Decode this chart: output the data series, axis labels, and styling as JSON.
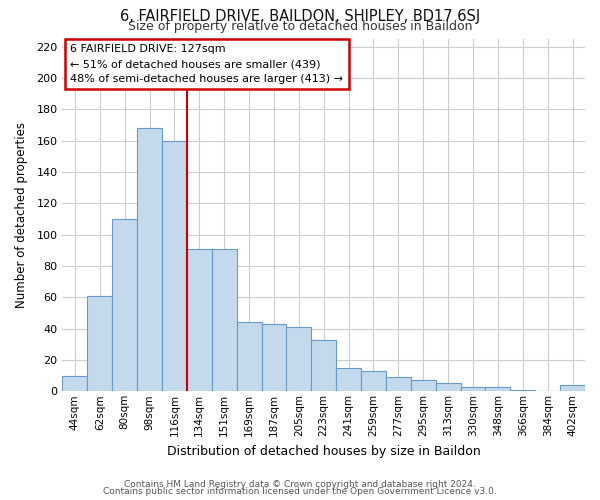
{
  "title1": "6, FAIRFIELD DRIVE, BAILDON, SHIPLEY, BD17 6SJ",
  "title2": "Size of property relative to detached houses in Baildon",
  "xlabel": "Distribution of detached houses by size in Baildon",
  "ylabel": "Number of detached properties",
  "footnote1": "Contains HM Land Registry data © Crown copyright and database right 2024.",
  "footnote2": "Contains public sector information licensed under the Open Government Licence v3.0.",
  "annotation_line1": "6 FAIRFIELD DRIVE: 127sqm",
  "annotation_line2": "← 51% of detached houses are smaller (439)",
  "annotation_line3": "48% of semi-detached houses are larger (413) →",
  "bar_labels": [
    "44sqm",
    "62sqm",
    "80sqm",
    "98sqm",
    "116sqm",
    "134sqm",
    "151sqm",
    "169sqm",
    "187sqm",
    "205sqm",
    "223sqm",
    "241sqm",
    "259sqm",
    "277sqm",
    "295sqm",
    "313sqm",
    "330sqm",
    "348sqm",
    "366sqm",
    "384sqm",
    "402sqm"
  ],
  "bar_values": [
    10,
    61,
    110,
    168,
    160,
    91,
    91,
    44,
    43,
    41,
    33,
    15,
    13,
    9,
    7,
    5,
    3,
    3,
    1,
    0,
    4
  ],
  "bar_color": "#c5d9ec",
  "bar_edge_color": "#6699cc",
  "bar_edge_width": 0.8,
  "vline_x": 4.5,
  "vline_color": "#cc0000",
  "ylim": [
    0,
    225
  ],
  "yticks": [
    0,
    20,
    40,
    60,
    80,
    100,
    120,
    140,
    160,
    180,
    200,
    220
  ],
  "annotation_box_color": "#ffffff",
  "annotation_box_edge": "#cc0000",
  "grid_color": "#cccccc",
  "background_color": "#ffffff"
}
